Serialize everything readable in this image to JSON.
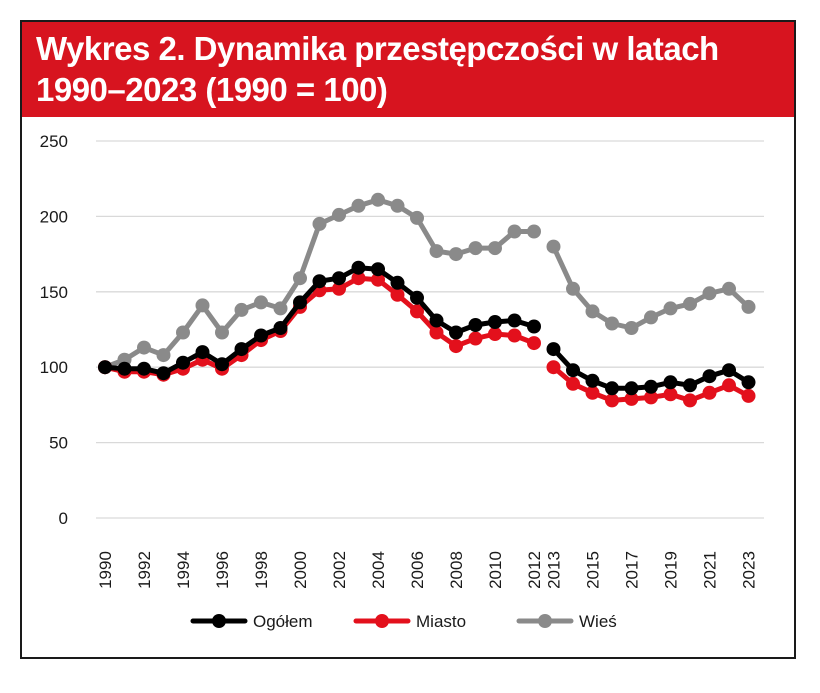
{
  "colors": {
    "title_bg": "#d7141f",
    "title_text": "#ffffff",
    "ogolem": "#000000",
    "miasto": "#e3101c",
    "wies": "#8a8a8a",
    "grid": "#d9d9d9"
  },
  "chart_data": {
    "type": "line",
    "title": "Wykres 2. Dynamika przestępczości w latach 1990–2023 (1990 = 100)",
    "title_lines": [
      "Wykres 2. Dynamika przestępczości w latach",
      "1990–2023 (1990 = 100)"
    ],
    "xlabel": "",
    "ylabel": "",
    "ylim": [
      0,
      250
    ],
    "yticks": [
      0,
      50,
      100,
      150,
      200,
      250
    ],
    "grid": true,
    "legend_position": "bottom",
    "x": [
      1990,
      1991,
      1992,
      1993,
      1994,
      1995,
      1996,
      1997,
      1998,
      1999,
      2000,
      2001,
      2002,
      2003,
      2004,
      2005,
      2006,
      2007,
      2008,
      2009,
      2010,
      2011,
      2012,
      2013,
      2014,
      2015,
      2016,
      2017,
      2018,
      2019,
      2020,
      2021,
      2022,
      2023
    ],
    "x_tick_labels": [
      "1990",
      "1992",
      "1994",
      "1996",
      "1998",
      "2000",
      "2002",
      "2004",
      "2006",
      "2008",
      "2010",
      "2012",
      "2013",
      "2015",
      "2017",
      "2019",
      "2021",
      "2023"
    ],
    "x_tick_years": [
      1990,
      1992,
      1994,
      1996,
      1998,
      2000,
      2002,
      2004,
      2006,
      2008,
      2010,
      2012,
      2013,
      2015,
      2017,
      2019,
      2021,
      2023
    ],
    "series_break_between": [
      2012,
      2013
    ],
    "series": [
      {
        "name": "Ogółem",
        "color": "#000000",
        "values": [
          100,
          99,
          99,
          96,
          103,
          110,
          102,
          112,
          121,
          126,
          143,
          157,
          159,
          166,
          165,
          156,
          146,
          131,
          123,
          128,
          130,
          131,
          127,
          112,
          98,
          91,
          86,
          86,
          87,
          90,
          88,
          94,
          98,
          90
        ]
      },
      {
        "name": "Miasto",
        "color": "#e3101c",
        "values": [
          100,
          97,
          97,
          95,
          99,
          105,
          99,
          108,
          118,
          124,
          140,
          151,
          152,
          159,
          158,
          148,
          137,
          123,
          114,
          119,
          122,
          121,
          116,
          100,
          89,
          83,
          78,
          79,
          80,
          82,
          78,
          83,
          88,
          81
        ]
      },
      {
        "name": "Wieś",
        "color": "#8a8a8a",
        "values": [
          100,
          105,
          113,
          108,
          123,
          141,
          123,
          138,
          143,
          139,
          159,
          195,
          201,
          207,
          211,
          207,
          199,
          177,
          175,
          179,
          179,
          190,
          190,
          180,
          152,
          137,
          129,
          126,
          133,
          139,
          142,
          149,
          152,
          140
        ]
      }
    ]
  }
}
